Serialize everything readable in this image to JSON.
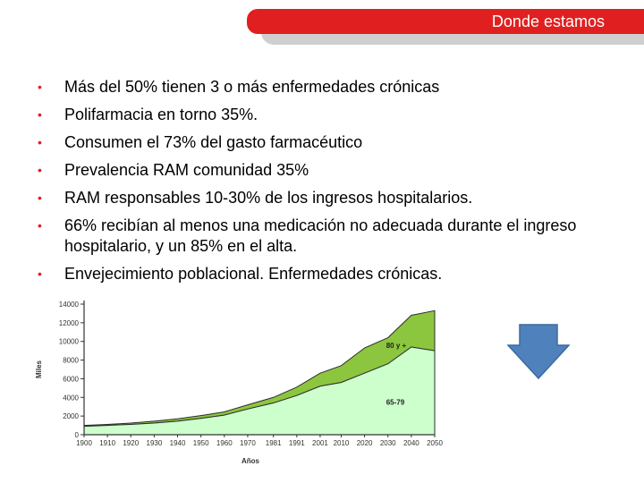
{
  "header": {
    "title": "Donde estamos"
  },
  "bullets": [
    "Más del 50% tienen 3 o más enfermedades crónicas",
    "Polifarmacia  en torno 35%.",
    "Consumen el 73% del gasto farmacéutico",
    "Prevalencia RAM comunidad 35%",
    "RAM responsables 10-30% de los ingresos hospitalarios.",
    "66% recibían al menos una medicación no adecuada durante el ingreso hospitalario, y un 85% en el alta.",
    "Envejecimiento poblacional. Enfermedades crónicas."
  ],
  "colors": {
    "accent": "#e02020",
    "area_dark": "#8cc63f",
    "area_light": "#ccffcc",
    "arrow": "#4f81bd"
  },
  "chart_data": {
    "type": "area",
    "x": [
      1900,
      1910,
      1920,
      1930,
      1940,
      1950,
      1960,
      1970,
      1981,
      1991,
      2001,
      2010,
      2020,
      2030,
      2040,
      2050
    ],
    "x_tick_labels": [
      "1900",
      "1910",
      "1920",
      "1930",
      "1940",
      "1950",
      "1960",
      "1970",
      "1981",
      "1991",
      "2001",
      "2010",
      "2020",
      "2030",
      "2040",
      "2050"
    ],
    "ylabel": "Miles",
    "xlabel": "Años",
    "ylim": [
      0,
      14000
    ],
    "y_ticks": [
      0,
      2000,
      4000,
      6000,
      8000,
      10000,
      12000,
      14000
    ],
    "y_tick_labels": [
      "0",
      "2000",
      "4000",
      "6000",
      "8000",
      "10000",
      "12000",
      "14000"
    ],
    "series": [
      {
        "name": "65-79",
        "values": [
          900,
          1000,
          1100,
          1250,
          1450,
          1750,
          2100,
          2750,
          3400,
          4200,
          5200,
          5600,
          6600,
          7600,
          9400,
          9000
        ]
      },
      {
        "name": "80 y +",
        "values": [
          1000,
          1100,
          1250,
          1450,
          1700,
          2050,
          2450,
          3200,
          4000,
          5100,
          6600,
          7400,
          9300,
          10400,
          12800,
          13300
        ]
      }
    ]
  }
}
